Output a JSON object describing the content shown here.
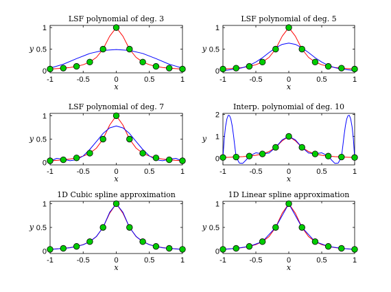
{
  "chart_data": [
    {
      "type": "line",
      "title": "LSF polynomial of deg. 3",
      "xlabel": "x",
      "ylabel": "y",
      "xlim": [
        -1,
        1
      ],
      "ylim": [
        -0.05,
        1.05
      ],
      "xticks": [
        -1,
        -0.5,
        0,
        0.5,
        1
      ],
      "xtick_labels": [
        "-1",
        "-0.5",
        "0",
        "0.5",
        "1"
      ],
      "yticks": [
        0,
        0.5,
        1
      ],
      "ytick_labels": [
        "0",
        "0.5",
        "1"
      ],
      "grid": false,
      "series": [
        {
          "role": "runge",
          "color": "#ff0000",
          "x": [
            -1,
            -0.9,
            -0.8,
            -0.7,
            -0.6,
            -0.5,
            -0.4,
            -0.3,
            -0.2,
            -0.1,
            0,
            0.1,
            0.2,
            0.3,
            0.4,
            0.5,
            0.6,
            0.7,
            0.8,
            0.9,
            1
          ],
          "y": [
            0.038,
            0.047,
            0.059,
            0.075,
            0.1,
            0.138,
            0.2,
            0.308,
            0.5,
            0.8,
            1,
            0.8,
            0.5,
            0.308,
            0.2,
            0.138,
            0.1,
            0.075,
            0.059,
            0.047,
            0.038
          ]
        },
        {
          "role": "fit",
          "color": "#0000ff",
          "x": [
            -1,
            -0.8,
            -0.6,
            -0.4,
            -0.2,
            0,
            0.2,
            0.4,
            0.6,
            0.8,
            1
          ],
          "y": [
            0.06,
            0.15,
            0.28,
            0.4,
            0.47,
            0.49,
            0.47,
            0.4,
            0.28,
            0.15,
            0.06
          ]
        },
        {
          "role": "nodes",
          "color": "#00cc00",
          "marker": "circle",
          "x": [
            -1,
            -0.8,
            -0.6,
            -0.4,
            -0.2,
            0,
            0.2,
            0.4,
            0.6,
            0.8,
            1
          ],
          "y": [
            0.038,
            0.059,
            0.1,
            0.2,
            0.5,
            1,
            0.5,
            0.2,
            0.1,
            0.059,
            0.038
          ]
        }
      ]
    },
    {
      "type": "line",
      "title": "LSF polynomial of deg. 5",
      "xlabel": "x",
      "ylabel": "y",
      "xlim": [
        -1,
        1
      ],
      "ylim": [
        -0.05,
        1.05
      ],
      "xticks": [
        -1,
        -0.5,
        0,
        0.5,
        1
      ],
      "xtick_labels": [
        "-1",
        "-0.5",
        "0",
        "0.5",
        "1"
      ],
      "yticks": [
        0,
        0.5,
        1
      ],
      "ytick_labels": [
        "0",
        "0.5",
        "1"
      ],
      "grid": false,
      "series": [
        {
          "role": "runge",
          "color": "#ff0000",
          "x": [
            -1,
            -0.9,
            -0.8,
            -0.7,
            -0.6,
            -0.5,
            -0.4,
            -0.3,
            -0.2,
            -0.1,
            0,
            0.1,
            0.2,
            0.3,
            0.4,
            0.5,
            0.6,
            0.7,
            0.8,
            0.9,
            1
          ],
          "y": [
            0.038,
            0.047,
            0.059,
            0.075,
            0.1,
            0.138,
            0.2,
            0.308,
            0.5,
            0.8,
            1,
            0.8,
            0.5,
            0.308,
            0.2,
            0.138,
            0.1,
            0.075,
            0.059,
            0.047,
            0.038
          ]
        },
        {
          "role": "fit",
          "color": "#0000ff",
          "x": [
            -1,
            -0.9,
            -0.8,
            -0.7,
            -0.6,
            -0.5,
            -0.4,
            -0.3,
            -0.2,
            -0.1,
            0,
            0.1,
            0.2,
            0.3,
            0.4,
            0.5,
            0.6,
            0.7,
            0.8,
            0.9,
            1
          ],
          "y": [
            0.0,
            0.02,
            0.04,
            0.07,
            0.12,
            0.2,
            0.3,
            0.42,
            0.53,
            0.61,
            0.64,
            0.61,
            0.53,
            0.42,
            0.3,
            0.2,
            0.12,
            0.07,
            0.04,
            0.02,
            0.0
          ]
        },
        {
          "role": "nodes",
          "color": "#00cc00",
          "marker": "circle",
          "x": [
            -1,
            -0.8,
            -0.6,
            -0.4,
            -0.2,
            0,
            0.2,
            0.4,
            0.6,
            0.8,
            1
          ],
          "y": [
            0.038,
            0.059,
            0.1,
            0.2,
            0.5,
            1,
            0.5,
            0.2,
            0.1,
            0.059,
            0.038
          ]
        }
      ]
    },
    {
      "type": "line",
      "title": "LSF polynomial of deg. 7",
      "xlabel": "x",
      "ylabel": "y",
      "xlim": [
        -1,
        1
      ],
      "ylim": [
        -0.05,
        1.05
      ],
      "xticks": [
        -1,
        -0.5,
        0,
        0.5,
        1
      ],
      "xtick_labels": [
        "-1",
        "-0.5",
        "0",
        "0.5",
        "1"
      ],
      "yticks": [
        0,
        0.5,
        1
      ],
      "ytick_labels": [
        "0",
        "0.5",
        "1"
      ],
      "grid": false,
      "series": [
        {
          "role": "runge",
          "color": "#ff0000",
          "x": [
            -1,
            -0.9,
            -0.8,
            -0.7,
            -0.6,
            -0.5,
            -0.4,
            -0.3,
            -0.2,
            -0.1,
            0,
            0.1,
            0.2,
            0.3,
            0.4,
            0.5,
            0.6,
            0.7,
            0.8,
            0.9,
            1
          ],
          "y": [
            0.038,
            0.047,
            0.059,
            0.075,
            0.1,
            0.138,
            0.2,
            0.308,
            0.5,
            0.8,
            1,
            0.8,
            0.5,
            0.308,
            0.2,
            0.138,
            0.1,
            0.075,
            0.059,
            0.047,
            0.038
          ]
        },
        {
          "role": "fit",
          "color": "#0000ff",
          "x": [
            -1,
            -0.95,
            -0.9,
            -0.8,
            -0.7,
            -0.6,
            -0.5,
            -0.4,
            -0.3,
            -0.2,
            -0.1,
            0,
            0.1,
            0.2,
            0.3,
            0.4,
            0.5,
            0.6,
            0.7,
            0.8,
            0.9,
            0.95,
            1
          ],
          "y": [
            0.0,
            0.06,
            0.09,
            0.07,
            0.04,
            0.06,
            0.14,
            0.28,
            0.45,
            0.62,
            0.74,
            0.78,
            0.74,
            0.62,
            0.45,
            0.28,
            0.14,
            0.06,
            0.04,
            0.07,
            0.09,
            0.06,
            0.0
          ]
        },
        {
          "role": "nodes",
          "color": "#00cc00",
          "marker": "circle",
          "x": [
            -1,
            -0.8,
            -0.6,
            -0.4,
            -0.2,
            0,
            0.2,
            0.4,
            0.6,
            0.8,
            1
          ],
          "y": [
            0.038,
            0.059,
            0.1,
            0.2,
            0.5,
            1,
            0.5,
            0.2,
            0.1,
            0.059,
            0.038
          ]
        }
      ]
    },
    {
      "type": "line",
      "title": "Interp. polynomial of deg. 10",
      "xlabel": "x",
      "ylabel": "y",
      "xlim": [
        -1,
        1
      ],
      "ylim": [
        -0.3,
        2.05
      ],
      "xticks": [
        -1,
        -0.5,
        0,
        0.5,
        1
      ],
      "xtick_labels": [
        "-1",
        "-0.5",
        "0",
        "0.5",
        "1"
      ],
      "yticks": [
        0,
        1,
        2
      ],
      "ytick_labels": [
        "0",
        "1",
        "2"
      ],
      "grid": false,
      "series": [
        {
          "role": "runge",
          "color": "#ff0000",
          "x": [
            -1,
            -0.9,
            -0.8,
            -0.7,
            -0.6,
            -0.5,
            -0.4,
            -0.3,
            -0.2,
            -0.1,
            0,
            0.1,
            0.2,
            0.3,
            0.4,
            0.5,
            0.6,
            0.7,
            0.8,
            0.9,
            1
          ],
          "y": [
            0.038,
            0.047,
            0.059,
            0.075,
            0.1,
            0.138,
            0.2,
            0.308,
            0.5,
            0.8,
            1,
            0.8,
            0.5,
            0.308,
            0.2,
            0.138,
            0.1,
            0.075,
            0.059,
            0.047,
            0.038
          ]
        },
        {
          "role": "fit",
          "color": "#0000ff",
          "x": [
            -1,
            -0.98,
            -0.96,
            -0.94,
            -0.92,
            -0.9,
            -0.88,
            -0.86,
            -0.84,
            -0.82,
            -0.8,
            -0.75,
            -0.7,
            -0.65,
            -0.6,
            -0.5,
            -0.4,
            -0.3,
            -0.2,
            -0.1,
            0,
            0.1,
            0.2,
            0.3,
            0.4,
            0.5,
            0.6,
            0.65,
            0.7,
            0.75,
            0.8,
            0.82,
            0.84,
            0.86,
            0.88,
            0.9,
            0.92,
            0.94,
            0.96,
            0.98,
            1
          ],
          "y": [
            0.038,
            0.9,
            1.45,
            1.8,
            1.96,
            1.95,
            1.8,
            1.5,
            1.05,
            0.55,
            0.059,
            -0.22,
            -0.23,
            -0.08,
            0.1,
            0.25,
            0.2,
            0.24,
            0.5,
            0.84,
            1,
            0.84,
            0.5,
            0.24,
            0.2,
            0.25,
            0.1,
            -0.08,
            -0.23,
            -0.22,
            0.059,
            0.55,
            1.05,
            1.5,
            1.8,
            1.95,
            1.96,
            1.8,
            1.45,
            0.9,
            0.038
          ]
        },
        {
          "role": "nodes",
          "color": "#00cc00",
          "marker": "circle",
          "x": [
            -1,
            -0.8,
            -0.6,
            -0.4,
            -0.2,
            0,
            0.2,
            0.4,
            0.6,
            0.8,
            1
          ],
          "y": [
            0.038,
            0.059,
            0.1,
            0.2,
            0.5,
            1,
            0.5,
            0.2,
            0.1,
            0.059,
            0.038
          ]
        }
      ]
    },
    {
      "type": "line",
      "title": "1D Cubic spline approximation",
      "xlabel": "x",
      "ylabel": "y",
      "xlim": [
        -1,
        1
      ],
      "ylim": [
        -0.05,
        1.05
      ],
      "xticks": [
        -1,
        -0.5,
        0,
        0.5,
        1
      ],
      "xtick_labels": [
        "-1",
        "-0.5",
        "0",
        "0.5",
        "1"
      ],
      "yticks": [
        0,
        0.5,
        1
      ],
      "ytick_labels": [
        "0",
        "0.5",
        "1"
      ],
      "grid": false,
      "series": [
        {
          "role": "runge",
          "color": "#ff0000",
          "x": [
            -1,
            -0.9,
            -0.8,
            -0.7,
            -0.6,
            -0.5,
            -0.4,
            -0.3,
            -0.2,
            -0.1,
            0,
            0.1,
            0.2,
            0.3,
            0.4,
            0.5,
            0.6,
            0.7,
            0.8,
            0.9,
            1
          ],
          "y": [
            0.038,
            0.047,
            0.059,
            0.075,
            0.1,
            0.138,
            0.2,
            0.308,
            0.5,
            0.8,
            1,
            0.8,
            0.5,
            0.308,
            0.2,
            0.138,
            0.1,
            0.075,
            0.059,
            0.047,
            0.038
          ]
        },
        {
          "role": "fit",
          "color": "#0000ff",
          "x": [
            -1,
            -0.9,
            -0.8,
            -0.7,
            -0.6,
            -0.5,
            -0.4,
            -0.3,
            -0.2,
            -0.1,
            0,
            0.1,
            0.2,
            0.3,
            0.4,
            0.5,
            0.6,
            0.7,
            0.8,
            0.9,
            1
          ],
          "y": [
            0.038,
            0.047,
            0.059,
            0.072,
            0.1,
            0.135,
            0.2,
            0.31,
            0.5,
            0.82,
            1,
            0.82,
            0.5,
            0.31,
            0.2,
            0.135,
            0.1,
            0.072,
            0.059,
            0.047,
            0.038
          ]
        },
        {
          "role": "nodes",
          "color": "#00cc00",
          "marker": "circle",
          "x": [
            -1,
            -0.8,
            -0.6,
            -0.4,
            -0.2,
            0,
            0.2,
            0.4,
            0.6,
            0.8,
            1
          ],
          "y": [
            0.038,
            0.059,
            0.1,
            0.2,
            0.5,
            1,
            0.5,
            0.2,
            0.1,
            0.059,
            0.038
          ]
        }
      ]
    },
    {
      "type": "line",
      "title": "1D Linear spline approximation",
      "xlabel": "x",
      "ylabel": "y",
      "xlim": [
        -1,
        1
      ],
      "ylim": [
        -0.05,
        1.05
      ],
      "xticks": [
        -1,
        -0.5,
        0,
        0.5,
        1
      ],
      "xtick_labels": [
        "-1",
        "-0.5",
        "0",
        "0.5",
        "1"
      ],
      "yticks": [
        0,
        0.5,
        1
      ],
      "ytick_labels": [
        "0",
        "0.5",
        "1"
      ],
      "grid": false,
      "series": [
        {
          "role": "runge",
          "color": "#ff0000",
          "x": [
            -1,
            -0.9,
            -0.8,
            -0.7,
            -0.6,
            -0.5,
            -0.4,
            -0.3,
            -0.2,
            -0.1,
            0,
            0.1,
            0.2,
            0.3,
            0.4,
            0.5,
            0.6,
            0.7,
            0.8,
            0.9,
            1
          ],
          "y": [
            0.038,
            0.047,
            0.059,
            0.075,
            0.1,
            0.138,
            0.2,
            0.308,
            0.5,
            0.8,
            1,
            0.8,
            0.5,
            0.308,
            0.2,
            0.138,
            0.1,
            0.075,
            0.059,
            0.047,
            0.038
          ]
        },
        {
          "role": "fit",
          "color": "#0000ff",
          "x": [
            -1,
            -0.8,
            -0.6,
            -0.4,
            -0.2,
            0,
            0.2,
            0.4,
            0.6,
            0.8,
            1
          ],
          "y": [
            0.038,
            0.059,
            0.1,
            0.2,
            0.5,
            1,
            0.5,
            0.2,
            0.1,
            0.059,
            0.038
          ]
        },
        {
          "role": "nodes",
          "color": "#00cc00",
          "marker": "circle",
          "x": [
            -1,
            -0.8,
            -0.6,
            -0.4,
            -0.2,
            0,
            0.2,
            0.4,
            0.6,
            0.8,
            1
          ],
          "y": [
            0.038,
            0.059,
            0.1,
            0.2,
            0.5,
            1,
            0.5,
            0.2,
            0.1,
            0.059,
            0.038
          ]
        }
      ]
    }
  ]
}
